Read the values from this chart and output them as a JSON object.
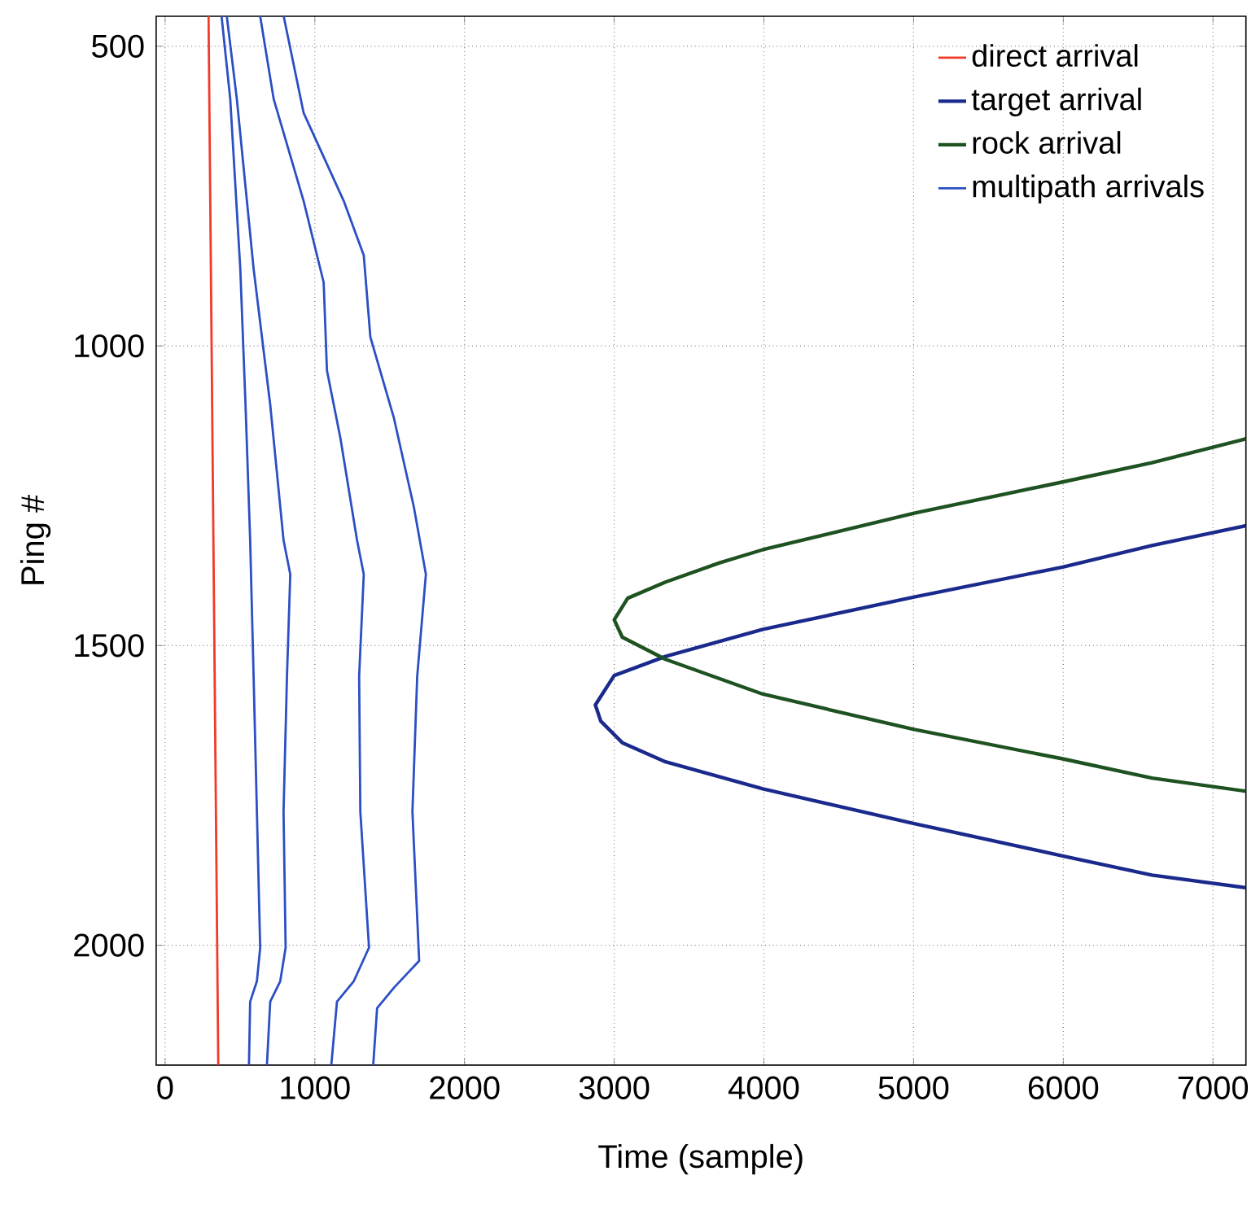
{
  "chart_data": {
    "type": "line",
    "xlabel": "Time (sample)",
    "ylabel": "Ping #",
    "xlim": [
      -60,
      7220
    ],
    "ylim": [
      2200,
      450
    ],
    "xticks": [
      0,
      1000,
      2000,
      3000,
      4000,
      5000,
      6000,
      7000
    ],
    "yticks": [
      500,
      1000,
      1500,
      2000
    ],
    "grid": true,
    "legend": "top right",
    "series": [
      {
        "name": "direct arrival",
        "color": "#f03a2a",
        "x": [
          290,
          355
        ],
        "values": [
          450,
          2200
        ]
      },
      {
        "name": "target arrival",
        "color": "#1a2a8c",
        "x": [
          7220,
          6592,
          5996,
          5004,
          3993,
          3343,
          3000,
          2874,
          2910,
          3054,
          3343,
          3993,
          5004,
          5996,
          6592,
          7220
        ],
        "values": [
          1300,
          1333,
          1369,
          1419,
          1473,
          1518,
          1550,
          1599,
          1626,
          1662,
          1694,
          1739,
          1797,
          1851,
          1883,
          1904
        ]
      },
      {
        "name": "rock arrival",
        "color": "#1e5220",
        "x": [
          7220,
          6592,
          5996,
          5004,
          3993,
          3704,
          3343,
          3090,
          3000,
          3054,
          3343,
          3993,
          5004,
          5996,
          6592,
          7220
        ],
        "values": [
          1155,
          1195,
          1227,
          1279,
          1340,
          1362,
          1394,
          1421,
          1457,
          1486,
          1523,
          1581,
          1640,
          1689,
          1721,
          1743
        ]
      },
      {
        "name": "multipath arrivals",
        "color": "#2b4fc4",
        "x": [
          377,
          435,
          502,
          537,
          568,
          591,
          613,
          635,
          613,
          568,
          560
        ],
        "values": [
          450,
          588,
          871,
          1098,
          1324,
          1551,
          1777,
          2004,
          2060,
          2094,
          2200
        ]
      },
      {
        "color": "#2b4fc4",
        "x": [
          412,
          479,
          591,
          702,
          791,
          836,
          814,
          791,
          805,
          769,
          702,
          680
        ],
        "values": [
          450,
          588,
          871,
          1098,
          1324,
          1381,
          1551,
          1777,
          2004,
          2060,
          2094,
          2200
        ]
      },
      {
        "color": "#2b4fc4",
        "x": [
          635,
          725,
          925,
          1059,
          1081,
          1171,
          1282,
          1327,
          1296,
          1304,
          1362,
          1260,
          1148,
          1110
        ],
        "values": [
          450,
          588,
          758,
          894,
          1041,
          1154,
          1324,
          1381,
          1551,
          1777,
          2004,
          2060,
          2094,
          2200
        ]
      },
      {
        "color": "#2b4fc4",
        "x": [
          792,
          925,
          1193,
          1327,
          1371,
          1528,
          1661,
          1742,
          1684,
          1652,
          1697,
          1528,
          1416,
          1390
        ],
        "values": [
          450,
          611,
          758,
          849,
          985,
          1120,
          1268,
          1381,
          1551,
          1777,
          2026,
          2071,
          2105,
          2200
        ]
      }
    ]
  }
}
